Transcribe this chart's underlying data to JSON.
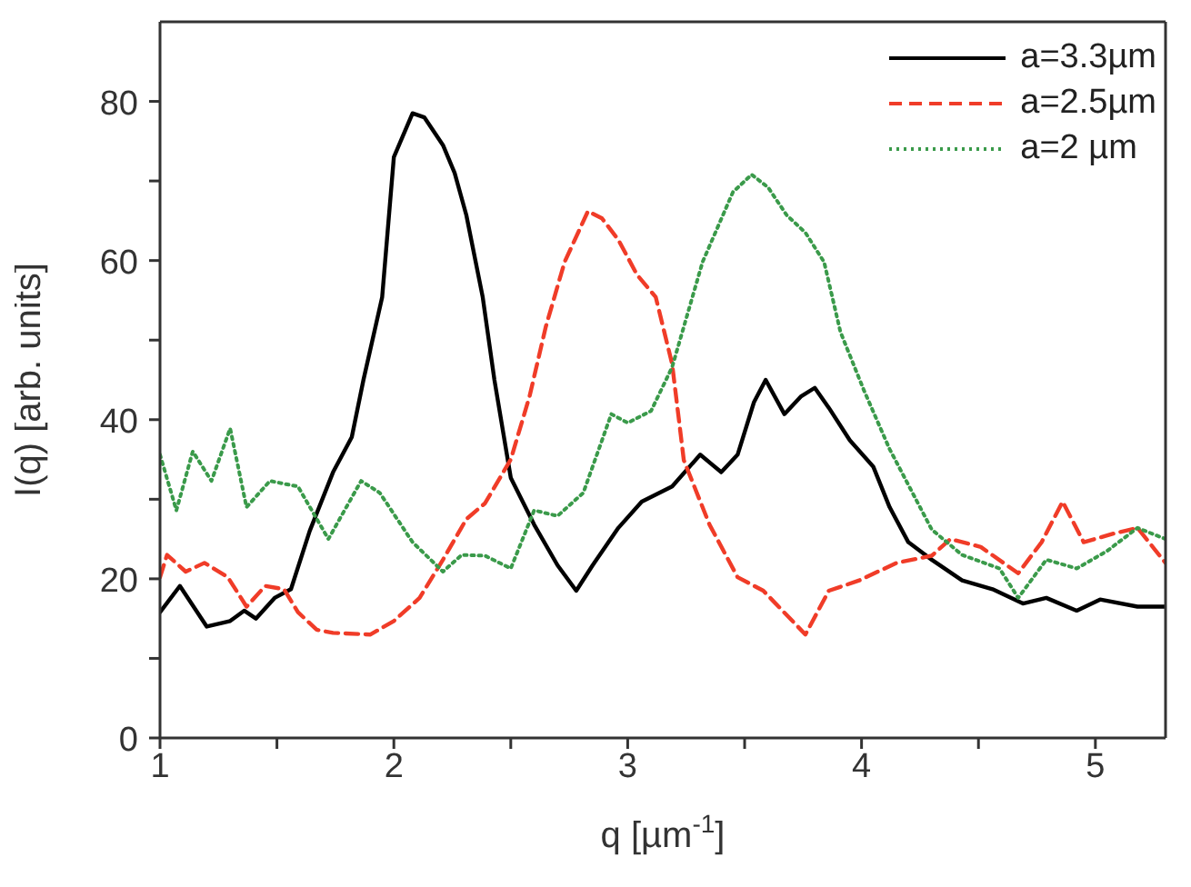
{
  "chart_data": {
    "type": "line",
    "xlabel": "q [µm$^{-1}$]",
    "ylabel": "I(q) [arb. units]",
    "xlim": [
      1,
      5.3
    ],
    "ylim": [
      0,
      90
    ],
    "xticks": [
      1,
      {
        "value": 1.5,
        "label": null
      },
      2,
      {
        "value": 2.5,
        "label": null
      },
      3,
      {
        "value": 3.5,
        "label": null
      },
      4,
      {
        "value": 4.5,
        "label": null
      },
      5
    ],
    "yticks": [
      0,
      {
        "value": 10,
        "label": null
      },
      20,
      {
        "value": 30,
        "label": null
      },
      40,
      {
        "value": 50,
        "label": null
      },
      60,
      {
        "value": 70,
        "label": null
      },
      80
    ],
    "legend": "top right",
    "marker": "none",
    "series": [
      {
        "name": "a=3.3µm",
        "color": "#000000",
        "line_style": "solid",
        "x": [
          1,
          1.085,
          1.2,
          1.3,
          1.36,
          1.41,
          1.49,
          1.56,
          1.64,
          1.74,
          1.82,
          1.87,
          1.95,
          2.0,
          2.08,
          2.13,
          2.21,
          2.26,
          2.31,
          2.38,
          2.43,
          2.5,
          2.6,
          2.7,
          2.78,
          2.85,
          2.96,
          3.06,
          3.19,
          3.31,
          3.4,
          3.47,
          3.54,
          3.59,
          3.67,
          3.74,
          3.8,
          3.86,
          3.95,
          4.05,
          4.12,
          4.2,
          4.3,
          4.43,
          4.56,
          4.69,
          4.79,
          4.92,
          5.02,
          5.18,
          5.3
        ],
        "values": [
          15.8,
          19.1,
          14,
          14.7,
          16,
          15,
          17.6,
          18.7,
          26,
          33.4,
          37.8,
          45,
          55.4,
          73,
          78.5,
          78,
          74.5,
          71,
          65.7,
          55.4,
          45,
          32.7,
          26.8,
          21.7,
          18.5,
          21.7,
          26.4,
          29.7,
          31.6,
          35.6,
          33.4,
          35.6,
          42.2,
          45,
          40.7,
          42.9,
          44,
          41.5,
          37.4,
          34.1,
          29,
          24.6,
          22.4,
          19.8,
          18.7,
          16.9,
          17.6,
          16,
          17.4,
          16.5,
          16.5
        ]
      },
      {
        "name": "a=2.5µm",
        "color": "#f03c28",
        "line_style": "dashed",
        "x": [
          1,
          1.03,
          1.11,
          1.19,
          1.29,
          1.37,
          1.45,
          1.53,
          1.59,
          1.67,
          1.74,
          1.9,
          2.0,
          2.11,
          2.21,
          2.31,
          2.39,
          2.5,
          2.58,
          2.65,
          2.73,
          2.83,
          2.89,
          2.96,
          3.04,
          3.12,
          3.19,
          3.24,
          3.35,
          3.47,
          3.58,
          3.76,
          3.86,
          3.99,
          4.15,
          4.3,
          4.38,
          4.51,
          4.67,
          4.77,
          4.86,
          4.95,
          5.08,
          5.18,
          5.3
        ],
        "values": [
          20.2,
          23,
          20.9,
          22,
          20.2,
          16.5,
          19.1,
          18.7,
          15.8,
          13.6,
          13.2,
          13,
          14.7,
          17.6,
          22.4,
          27.5,
          29.5,
          35,
          42.9,
          51.7,
          59.8,
          66.2,
          65.3,
          62.6,
          58.2,
          55.4,
          47,
          34.9,
          26.8,
          20.2,
          18.5,
          13,
          18.5,
          19.8,
          22,
          22.9,
          25,
          24,
          20.7,
          24.6,
          29.7,
          24.6,
          25.7,
          26.4,
          22
        ]
      },
      {
        "name": "a=2 µm",
        "color": "#3a9a4a",
        "line_style": "dotted",
        "x": [
          1,
          1.07,
          1.14,
          1.22,
          1.3,
          1.37,
          1.47,
          1.59,
          1.72,
          1.86,
          1.94,
          2.08,
          2.21,
          2.29,
          2.39,
          2.5,
          2.6,
          2.7,
          2.81,
          2.93,
          3.0,
          3.1,
          3.19,
          3.32,
          3.45,
          3.53,
          3.6,
          3.68,
          3.76,
          3.84,
          3.91,
          4.01,
          4.12,
          4.3,
          4.43,
          4.59,
          4.67,
          4.79,
          4.92,
          5.05,
          5.18,
          5.3
        ],
        "values": [
          35.6,
          28.6,
          36,
          32.3,
          38.9,
          29,
          32.3,
          31.6,
          25,
          32.3,
          30.8,
          24.6,
          20.9,
          23,
          22.9,
          21.3,
          28.6,
          27.9,
          30.8,
          40.7,
          39.6,
          41.1,
          46.6,
          59.8,
          68.6,
          70.8,
          69.2,
          65.7,
          63.5,
          59.8,
          51,
          43.7,
          36.3,
          26.2,
          23,
          21.3,
          17.6,
          22.4,
          21.3,
          23.5,
          26.4,
          25
        ]
      }
    ]
  }
}
